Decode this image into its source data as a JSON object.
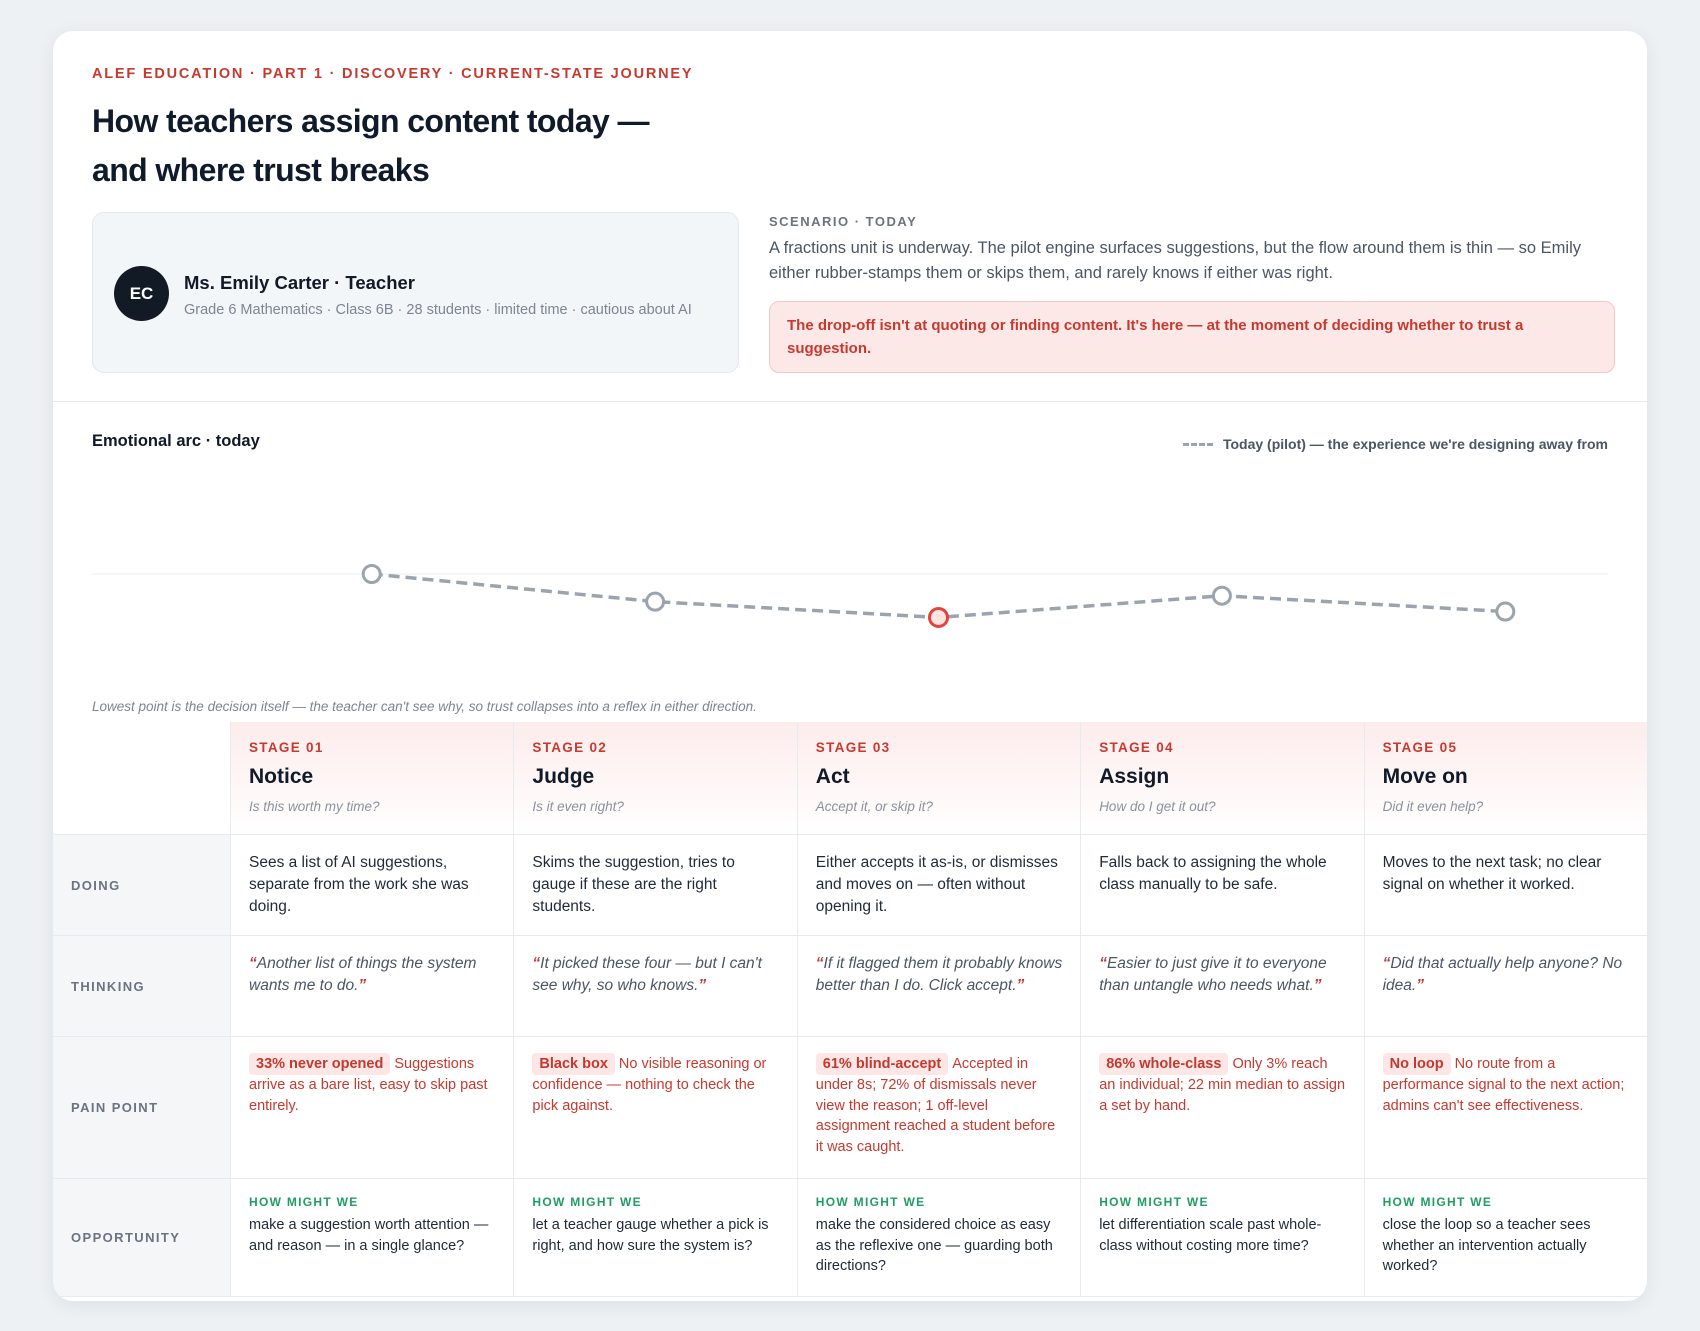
{
  "header": {
    "eyebrow": "ALEF EDUCATION · PART 1 · DISCOVERY · CURRENT-STATE JOURNEY",
    "title": "How teachers assign content today — and where trust breaks"
  },
  "persona": {
    "initials": "EC",
    "name": "Ms. Emily Carter · Teacher",
    "details": "Grade 6 Mathematics · Class 6B · 28 students · limited time · cautious about AI"
  },
  "scenario": {
    "label": "SCENARIO · TODAY",
    "text": "A fractions unit is underway. The pilot engine surfaces suggestions, but the flow around them is thin — so Emily either rubber-stamps them or skips them, and rarely knows if either was right.",
    "alert": "The drop-off isn't at quoting or finding content. It's here — at the moment of deciding whether to trust a suggestion."
  },
  "arc": {
    "title": "Emotional arc · today",
    "legend": "Today (pilot) — the experience we're designing away from",
    "caption": "Lowest point is the decision itself — the teacher can't see why, so trust collapses into a reflex in either direction."
  },
  "chart_data": {
    "type": "line",
    "categories": [
      "Notice",
      "Judge",
      "Act",
      "Assign",
      "Move on"
    ],
    "series": [
      {
        "name": "Today (pilot) — the experience we're designing away from",
        "values": [
          0.0,
          -0.7,
          -1.1,
          -0.55,
          -0.95
        ]
      }
    ],
    "lowest_index": 2,
    "colors": {
      "line": "#9aa3ae",
      "lowest": "#e0443a",
      "baseline": "#e9edf1"
    }
  },
  "row_labels": {
    "doing": "DOING",
    "thinking": "THINKING",
    "pain": "PAIN POINT",
    "opportunity": "OPPORTUNITY"
  },
  "hmw_label": "HOW MIGHT WE",
  "stages": [
    {
      "num": "STAGE 01",
      "name": "Notice",
      "question": "Is this worth my time?",
      "doing": "Sees a list of AI suggestions, separate from the work she was doing.",
      "thinking": "Another list of things the system wants me to do.",
      "pain_tag": "33% never opened",
      "pain": "Suggestions arrive as a bare list, easy to skip past entirely.",
      "opportunity": "make a suggestion worth attention — and reason — in a single glance?"
    },
    {
      "num": "STAGE 02",
      "name": "Judge",
      "question": "Is it even right?",
      "doing": "Skims the suggestion, tries to gauge if these are the right students.",
      "thinking": "It picked these four — but I can't see why, so who knows.",
      "pain_tag": "Black box",
      "pain": "No visible reasoning or confidence — nothing to check the pick against.",
      "opportunity": "let a teacher gauge whether a pick is right, and how sure the system is?"
    },
    {
      "num": "STAGE 03",
      "name": "Act",
      "question": "Accept it, or skip it?",
      "doing": "Either accepts it as-is, or dismisses and moves on — often without opening it.",
      "thinking": "If it flagged them it probably knows better than I do. Click accept.",
      "pain_tag": "61% blind-accept",
      "pain": "Accepted in under 8s; 72% of dismissals never view the reason; 1 off-level assignment reached a student before it was caught.",
      "opportunity": "make the considered choice as easy as the reflexive one — guarding both directions?"
    },
    {
      "num": "STAGE 04",
      "name": "Assign",
      "question": "How do I get it out?",
      "doing": "Falls back to assigning the whole class manually to be safe.",
      "thinking": "Easier to just give it to everyone than untangle who needs what.",
      "pain_tag": "86% whole-class",
      "pain": "Only 3% reach an individual; 22 min median to assign a set by hand.",
      "opportunity": "let differentiation scale past whole-class without costing more time?"
    },
    {
      "num": "STAGE 05",
      "name": "Move on",
      "question": "Did it even help?",
      "doing": "Moves to the next task; no clear signal on whether it worked.",
      "thinking": "Did that actually help anyone? No idea.",
      "pain_tag": "No loop",
      "pain": "No route from a performance signal to the next action; admins can't see effectiveness.",
      "opportunity": "close the loop so a teacher sees whether an intervention actually worked?"
    }
  ]
}
